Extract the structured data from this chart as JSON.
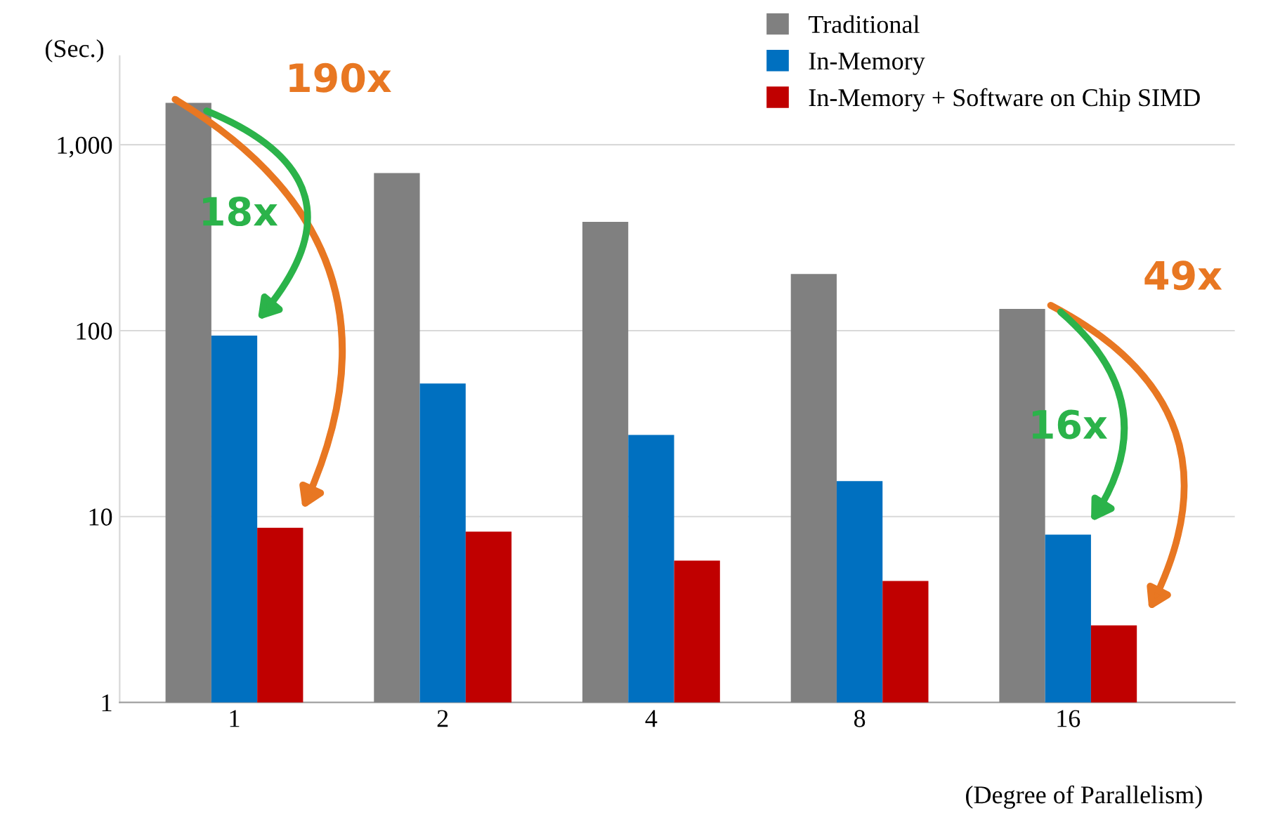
{
  "chart_data": {
    "type": "bar",
    "categories": [
      "1",
      "2",
      "4",
      "8",
      "16"
    ],
    "series": [
      {
        "name": "Traditional",
        "color": "#808080",
        "values": [
          1680,
          705,
          385,
          202,
          131
        ]
      },
      {
        "name": "In-Memory",
        "color": "#0070c0",
        "values": [
          94,
          52,
          27.5,
          15.5,
          8.0
        ]
      },
      {
        "name": "In-Memory + Software on Chip SIMD",
        "color": "#c00000",
        "values": [
          8.7,
          8.3,
          5.8,
          4.5,
          2.6
        ]
      }
    ],
    "ylabel": "(Sec.)",
    "xlabel": "(Degree of Parallelism)",
    "log": true,
    "ylim": [
      1,
      3000
    ],
    "yticks": [
      1,
      10,
      100,
      {
        "value": 1000,
        "label": "1,000"
      }
    ],
    "grid": "y",
    "legend": "top right",
    "annotations": [
      "190x",
      "18x",
      "49x",
      "16x"
    ]
  }
}
